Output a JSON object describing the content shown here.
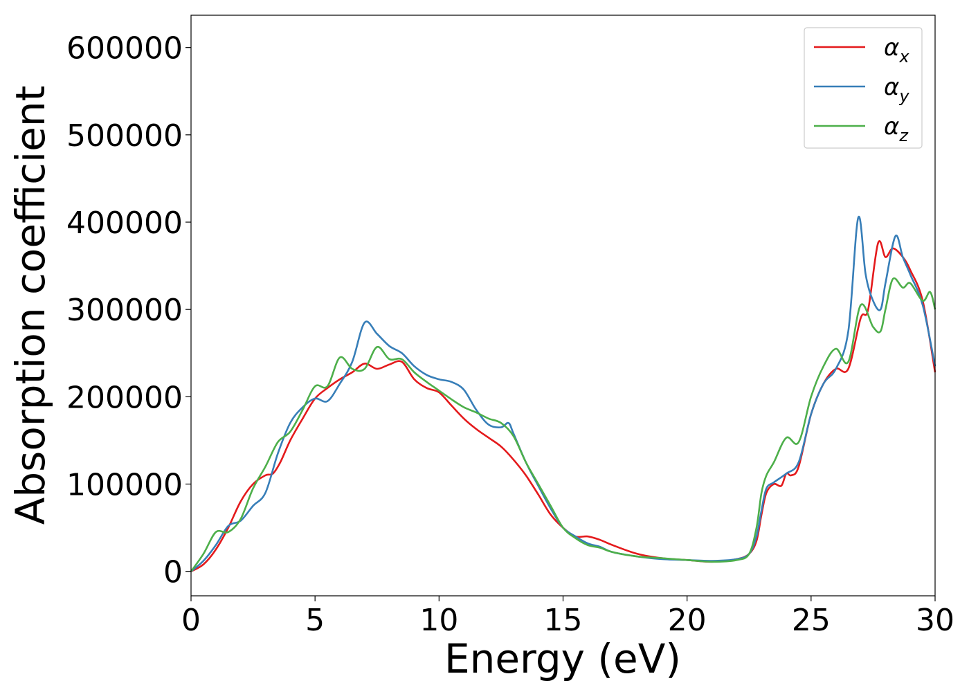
{
  "chart_data": {
    "type": "line",
    "title": "",
    "xlabel": "Energy (eV)",
    "ylabel": "Absorption coefficient",
    "xlim": [
      0,
      30
    ],
    "ylim": [
      -28000,
      637000
    ],
    "xticks": [
      0,
      5,
      10,
      15,
      20,
      25,
      30
    ],
    "yticks": [
      0,
      100000,
      200000,
      300000,
      400000,
      500000,
      600000
    ],
    "grid": false,
    "legend_position": "top-right",
    "series": [
      {
        "name": "αx",
        "legend_base": "α",
        "legend_sub": "x",
        "color": "#e41a1c",
        "x": [
          0,
          0.5,
          1,
          1.5,
          2,
          2.5,
          3,
          3.3,
          3.6,
          4,
          4.5,
          5,
          5.5,
          6,
          6.5,
          7,
          7.5,
          8,
          8.5,
          9,
          9.5,
          10,
          10.5,
          11,
          11.5,
          12,
          12.5,
          13,
          13.5,
          14,
          14.5,
          15,
          15.5,
          16,
          16.5,
          17,
          18,
          19,
          20,
          21,
          22,
          22.5,
          22.8,
          23,
          23.2,
          23.5,
          23.8,
          24,
          24.2,
          24.5,
          25,
          25.5,
          26,
          26.5,
          27,
          27.3,
          27.7,
          28,
          28.3,
          28.7,
          29,
          29.5,
          30
        ],
        "y": [
          0,
          8000,
          25000,
          50000,
          80000,
          100000,
          110000,
          112000,
          125000,
          150000,
          175000,
          198000,
          210000,
          220000,
          228000,
          238000,
          232000,
          237000,
          240000,
          220000,
          210000,
          205000,
          190000,
          175000,
          163000,
          153000,
          143000,
          128000,
          110000,
          88000,
          65000,
          50000,
          40000,
          40000,
          36000,
          30000,
          20000,
          15000,
          13000,
          11000,
          14000,
          20000,
          35000,
          65000,
          90000,
          100000,
          98000,
          112000,
          110000,
          120000,
          180000,
          215000,
          232000,
          232000,
          290000,
          300000,
          376000,
          360000,
          370000,
          360000,
          345000,
          310000,
          228000
        ]
      },
      {
        "name": "αy",
        "legend_base": "α",
        "legend_sub": "y",
        "color": "#377eb8",
        "x": [
          0,
          0.5,
          1,
          1.5,
          2,
          2.5,
          3,
          3.5,
          4,
          4.5,
          5,
          5.5,
          6,
          6.5,
          7,
          7.5,
          8,
          8.5,
          9,
          9.5,
          10,
          10.5,
          11,
          11.5,
          12,
          12.5,
          12.8,
          13,
          13.5,
          14,
          14.5,
          15,
          15.5,
          16,
          16.5,
          17,
          18,
          19,
          20,
          21,
          22,
          22.5,
          22.8,
          23,
          23.2,
          23.5,
          24,
          24.5,
          25,
          25.5,
          26,
          26.5,
          26.9,
          27.2,
          27.5,
          27.8,
          28,
          28.4,
          28.7,
          29,
          29.5,
          30
        ],
        "y": [
          0,
          12000,
          30000,
          52000,
          58000,
          75000,
          90000,
          135000,
          170000,
          188000,
          198000,
          195000,
          215000,
          240000,
          285000,
          272000,
          258000,
          250000,
          235000,
          225000,
          220000,
          217000,
          208000,
          185000,
          168000,
          165000,
          170000,
          158000,
          125000,
          98000,
          72000,
          50000,
          40000,
          32000,
          28000,
          22000,
          17000,
          14000,
          13000,
          12000,
          14000,
          20000,
          40000,
          70000,
          95000,
          102000,
          112000,
          125000,
          180000,
          215000,
          232000,
          275000,
          405000,
          340000,
          310000,
          300000,
          330000,
          384000,
          360000,
          340000,
          305000,
          235000
        ]
      },
      {
        "name": "αz",
        "legend_base": "α",
        "legend_sub": "z",
        "color": "#4daf4a",
        "x": [
          0,
          0.5,
          1,
          1.5,
          2,
          2.5,
          3,
          3.5,
          4,
          4.5,
          5,
          5.5,
          6,
          6.5,
          7,
          7.5,
          8,
          8.5,
          9,
          9.5,
          10,
          10.5,
          11,
          11.5,
          12,
          12.5,
          13,
          13.5,
          14,
          14.5,
          15,
          15.5,
          16,
          16.5,
          17,
          18,
          19,
          20,
          21,
          22,
          22.5,
          22.8,
          23,
          23.2,
          23.5,
          24,
          24.5,
          25,
          25.5,
          26,
          26.5,
          27,
          27.5,
          27.8,
          28,
          28.3,
          28.7,
          29,
          29.5,
          29.8,
          30
        ],
        "y": [
          0,
          20000,
          45000,
          45000,
          60000,
          95000,
          120000,
          148000,
          160000,
          185000,
          212000,
          212000,
          245000,
          232000,
          232000,
          257000,
          243000,
          243000,
          228000,
          217000,
          207000,
          197000,
          188000,
          182000,
          175000,
          170000,
          155000,
          125000,
          100000,
          75000,
          50000,
          38000,
          30000,
          27000,
          22000,
          17000,
          15000,
          13000,
          11000,
          13000,
          20000,
          50000,
          90000,
          110000,
          125000,
          153000,
          148000,
          200000,
          235000,
          255000,
          240000,
          305000,
          280000,
          275000,
          300000,
          335000,
          325000,
          330000,
          310000,
          320000,
          300000
        ]
      }
    ]
  }
}
